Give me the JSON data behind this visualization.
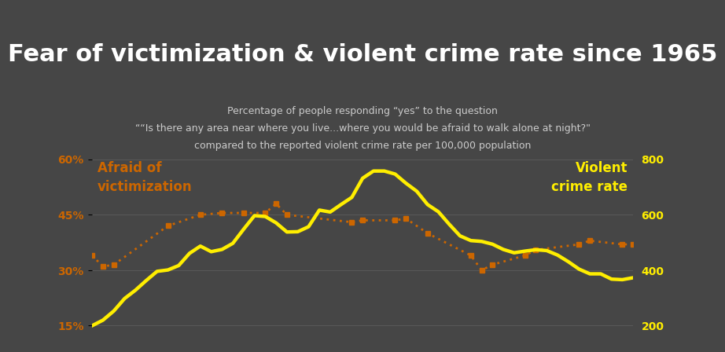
{
  "title": "Fear of victimization & violent crime rate since 1965",
  "subtitle_line1": "Percentage of people responding “yes” to the question",
  "subtitle_line2": "““Is there any area near where you live...where you would be afraid to walk alone at night?\"",
  "subtitle_line3": "compared to the reported violent crime rate per 100,000 population",
  "bg_color": "#464646",
  "black_bar_color": "#1a1a1a",
  "title_color": "#ffffff",
  "subtitle_color": "#cccccc",
  "left_label": "Afraid of\nvictimization",
  "right_label": "Violent\ncrime rate",
  "left_label_color": "#cc6600",
  "right_label_color": "#ffee00",
  "grid_color": "#888888",
  "fear_color": "#cc6600",
  "crime_color": "#ffee00",
  "years_fear": [
    1965,
    1966,
    1967,
    1972,
    1975,
    1977,
    1979,
    1981,
    1982,
    1983,
    1989,
    1990,
    1993,
    1994,
    1996,
    2000,
    2001,
    2002,
    2005,
    2006,
    2010,
    2011,
    2014,
    2015
  ],
  "fear_values": [
    0.34,
    0.31,
    0.315,
    0.42,
    0.45,
    0.455,
    0.455,
    0.455,
    0.48,
    0.45,
    0.43,
    0.435,
    0.435,
    0.44,
    0.4,
    0.34,
    0.3,
    0.315,
    0.34,
    0.355,
    0.37,
    0.38,
    0.37,
    0.37
  ],
  "years_crime": [
    1965,
    1966,
    1967,
    1968,
    1969,
    1970,
    1971,
    1972,
    1973,
    1974,
    1975,
    1976,
    1977,
    1978,
    1979,
    1980,
    1981,
    1982,
    1983,
    1984,
    1985,
    1986,
    1987,
    1988,
    1989,
    1990,
    1991,
    1992,
    1993,
    1994,
    1995,
    1996,
    1997,
    1998,
    1999,
    2000,
    2001,
    2002,
    2003,
    2004,
    2005,
    2006,
    2007,
    2008,
    2009,
    2010,
    2011,
    2012,
    2013,
    2014,
    2015
  ],
  "crime_values": [
    200,
    220,
    253,
    298,
    328,
    363,
    396,
    401,
    417,
    461,
    487,
    467,
    475,
    497,
    548,
    597,
    594,
    571,
    538,
    539,
    557,
    617,
    610,
    637,
    663,
    732,
    758,
    758,
    747,
    714,
    685,
    637,
    611,
    566,
    524,
    507,
    504,
    494,
    475,
    463,
    469,
    474,
    471,
    455,
    431,
    404,
    387,
    387,
    368,
    366,
    373
  ],
  "xlim": [
    1965,
    2015
  ],
  "left_ylim": [
    0.1,
    0.65
  ],
  "right_ylim": [
    133.33,
    866.67
  ],
  "left_yticks": [
    0.15,
    0.3,
    0.45,
    0.6
  ],
  "left_yticklabels": [
    "15%",
    "30%",
    "45%",
    "60%"
  ],
  "right_yticks": [
    200,
    400,
    600,
    800
  ],
  "right_yticklabels": [
    "200",
    "400",
    "600",
    "800"
  ],
  "tick_color": "#ffee00",
  "left_tick_color": "#cc6600",
  "title_fontsize": 22,
  "subtitle_fontsize": 9,
  "label_fontsize": 12
}
